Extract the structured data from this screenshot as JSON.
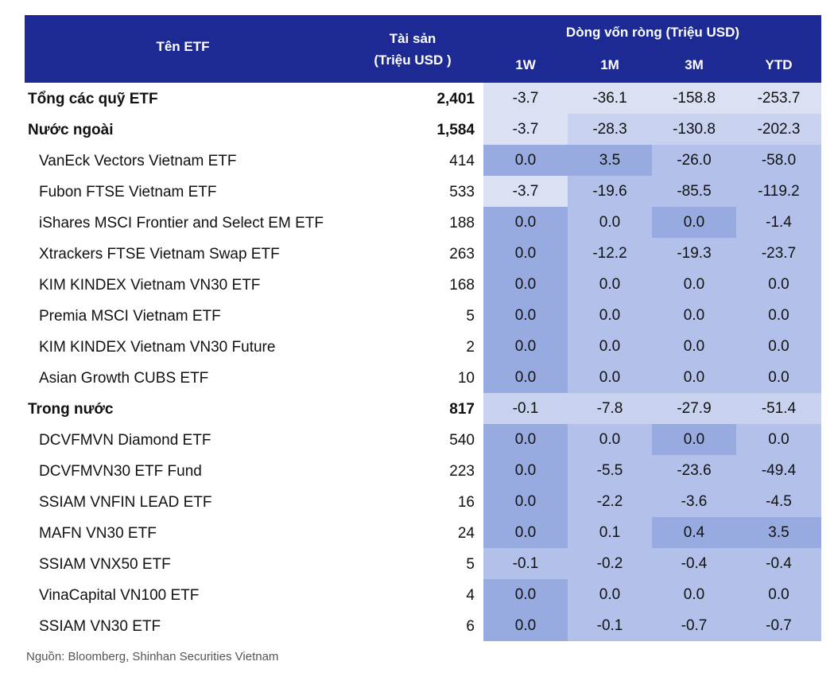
{
  "header": {
    "name": "Tên  ETF",
    "assets_line1": "Tài sản",
    "assets_line2": "(Triệu USD )",
    "flow_title": "Dòng vốn ròng  (Triệu USD)",
    "cols": [
      "1W",
      "1M",
      "3M",
      "YTD"
    ]
  },
  "rows": [
    {
      "name": "Tổng các quỹ ETF",
      "asset": "2,401",
      "v": [
        "-3.7",
        "-36.1",
        "-158.8",
        "-253.7"
      ]
    },
    {
      "name": "Nước ngoài",
      "asset": "1,584",
      "v": [
        "-3.7",
        "-28.3",
        "-130.8",
        "-202.3"
      ]
    },
    {
      "name": "VanEck Vectors Vietnam ETF",
      "asset": "414",
      "v": [
        "0.0",
        "3.5",
        "-26.0",
        "-58.0"
      ]
    },
    {
      "name": "Fubon FTSE Vietnam ETF",
      "asset": "533",
      "v": [
        "-3.7",
        "-19.6",
        "-85.5",
        "-119.2"
      ]
    },
    {
      "name": "iShares MSCI Frontier and Select EM ETF",
      "asset": "188",
      "v": [
        "0.0",
        "0.0",
        "0.0",
        "-1.4"
      ]
    },
    {
      "name": "Xtrackers FTSE Vietnam Swap ETF",
      "asset": "263",
      "v": [
        "0.0",
        "-12.2",
        "-19.3",
        "-23.7"
      ]
    },
    {
      "name": "KIM KINDEX Vietnam VN30 ETF",
      "asset": "168",
      "v": [
        "0.0",
        "0.0",
        "0.0",
        "0.0"
      ]
    },
    {
      "name": "Premia MSCI Vietnam ETF",
      "asset": "5",
      "v": [
        "0.0",
        "0.0",
        "0.0",
        "0.0"
      ]
    },
    {
      "name": "KIM KINDEX Vietnam VN30 Future",
      "asset": "2",
      "v": [
        "0.0",
        "0.0",
        "0.0",
        "0.0"
      ]
    },
    {
      "name": "Asian Growth CUBS ETF",
      "asset": "10",
      "v": [
        "0.0",
        "0.0",
        "0.0",
        "0.0"
      ]
    },
    {
      "name": "Trong nước",
      "asset": "817",
      "v": [
        "-0.1",
        "-7.8",
        "-27.9",
        "-51.4"
      ]
    },
    {
      "name": "DCVFMVN Diamond ETF",
      "asset": "540",
      "v": [
        "0.0",
        "0.0",
        "0.0",
        "0.0"
      ]
    },
    {
      "name": "DCVFMVN30 ETF Fund",
      "asset": "223",
      "v": [
        "0.0",
        "-5.5",
        "-23.6",
        "-49.4"
      ]
    },
    {
      "name": "SSIAM VNFIN LEAD ETF",
      "asset": "16",
      "v": [
        "0.0",
        "-2.2",
        "-3.6",
        "-4.5"
      ]
    },
    {
      "name": "MAFN VN30 ETF",
      "asset": "24",
      "v": [
        "0.0",
        "0.1",
        "0.4",
        "3.5"
      ]
    },
    {
      "name": "SSIAM VNX50 ETF",
      "asset": "5",
      "v": [
        "-0.1",
        "-0.2",
        "-0.4",
        "-0.4"
      ]
    },
    {
      "name": "VinaCapital VN100 ETF",
      "asset": "4",
      "v": [
        "0.0",
        "0.0",
        "0.0",
        "0.0"
      ]
    },
    {
      "name": "SSIAM VN30 ETF",
      "asset": "6",
      "v": [
        "0.0",
        "-0.1",
        "-0.7",
        "-0.7"
      ]
    }
  ],
  "source": "Nguồn: Bloomberg, Shinhan Securities Vietnam"
}
